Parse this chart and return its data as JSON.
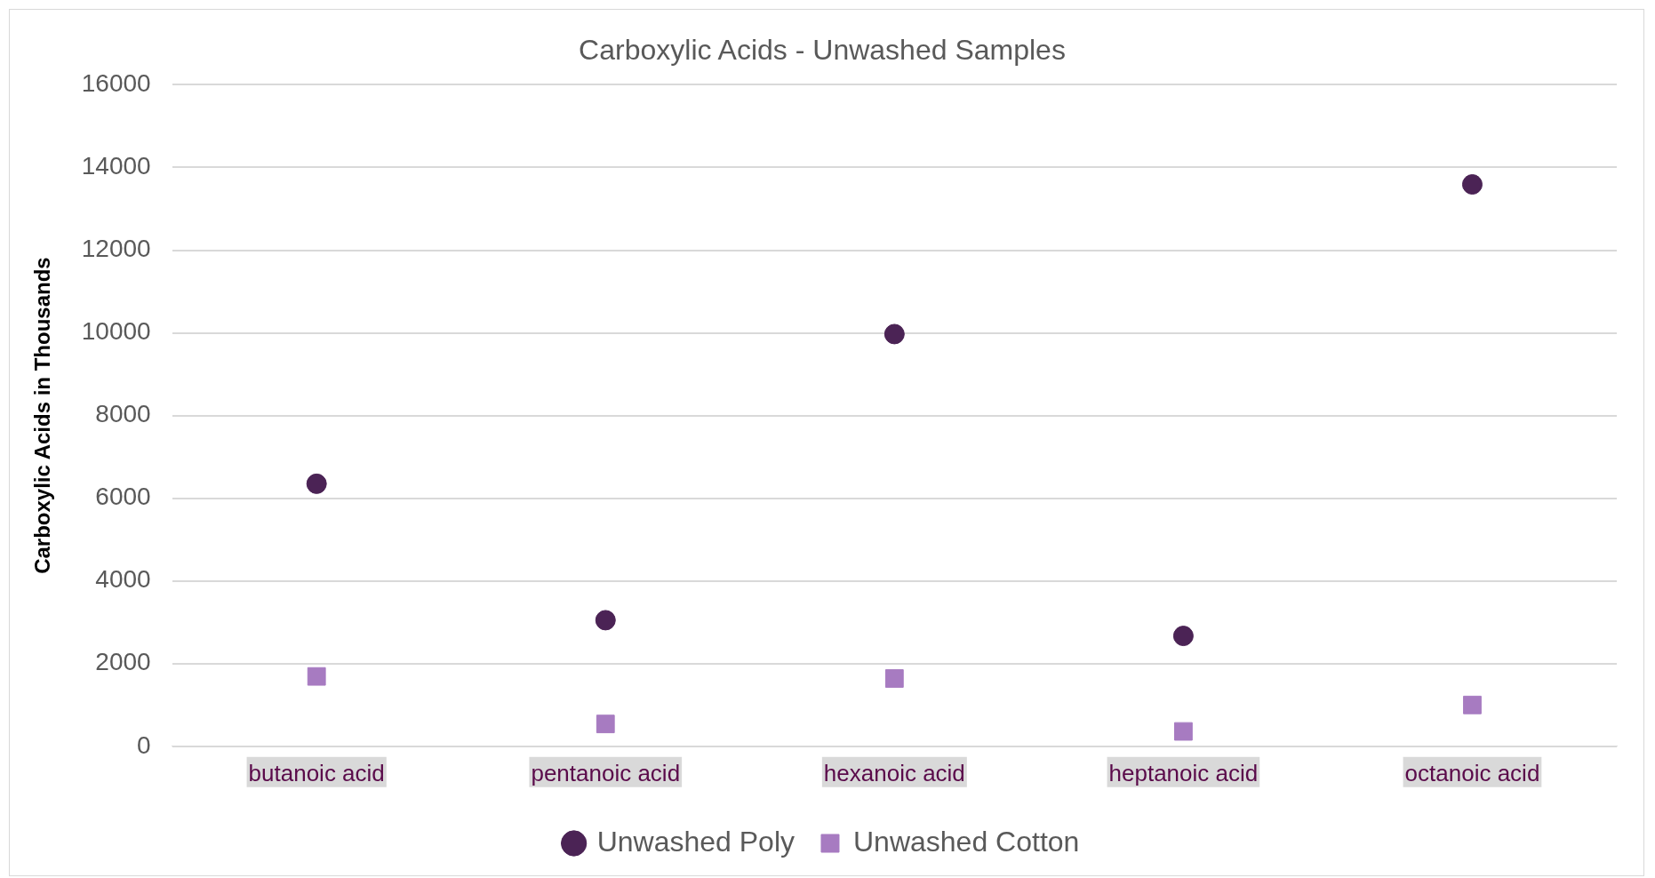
{
  "chart_data": {
    "type": "scatter",
    "title": "Carboxylic Acids - Unwashed Samples",
    "ylabel": "Carboxylic Acids in Thousands",
    "categories": [
      "butanoic acid",
      "pentanoic acid",
      "hexanoic acid",
      "heptanoic acid",
      "octanoic acid"
    ],
    "series": [
      {
        "name": "Unwashed Poly",
        "color": "#4b2355",
        "marker": "circle",
        "values": [
          6350,
          3050,
          9970,
          2670,
          13590
        ]
      },
      {
        "name": "Unwashed Cotton",
        "color": "#a77bc1",
        "marker": "square",
        "values": [
          1690,
          540,
          1640,
          360,
          1000
        ]
      }
    ],
    "ylim": [
      0,
      16000
    ],
    "yticks": [
      0,
      2000,
      4000,
      6000,
      8000,
      10000,
      12000,
      14000,
      16000
    ],
    "grid": "y",
    "legend": "bottom"
  }
}
